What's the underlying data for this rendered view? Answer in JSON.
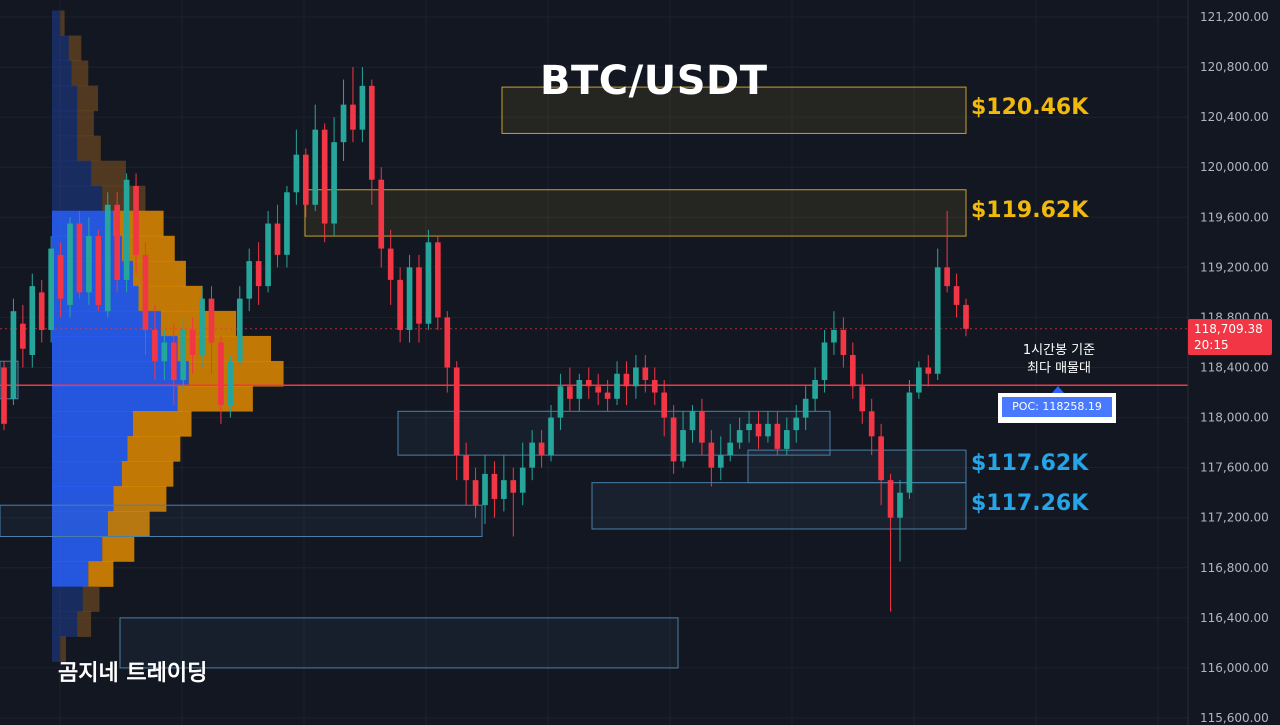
{
  "title": "BTC/USDT",
  "brand": "곰지네 트레이딩",
  "poc_note": {
    "line1": "1시간봉 기준",
    "line2": "최다 매물대"
  },
  "poc_label": "POC: 118258.19",
  "current_price": {
    "price": "118,709.38",
    "countdown": "20:15",
    "value": 118709.38
  },
  "colors": {
    "up": "#26a69a",
    "down": "#f23645",
    "gold": "#f0b90b",
    "cyan": "#26a4e8",
    "poc": "#f23645"
  },
  "zones": [
    {
      "label": "$120.46K",
      "color": "gold",
      "low": 120270,
      "high": 120640,
      "start": 502,
      "end": 966
    },
    {
      "label": "$119.62K",
      "color": "gold",
      "low": 119450,
      "high": 119820,
      "start": 305,
      "end": 966
    },
    {
      "label": "$117.62K",
      "color": "cyan",
      "low": 117480,
      "high": 117740,
      "start": 748,
      "end": 966
    },
    {
      "label": "$117.26K",
      "color": "cyan",
      "low": 117110,
      "high": 117480,
      "start": 592,
      "end": 966
    }
  ],
  "chart_data": {
    "type": "candlestick",
    "y_axis": {
      "min": 115600,
      "max": 121300,
      "ticks": [
        "121,200.00",
        "120,800.00",
        "120,400.00",
        "120,000.00",
        "119,600.00",
        "119,200.00",
        "118,800.00",
        "118,400.00",
        "118,000.00",
        "117,600.00",
        "117,200.00",
        "116,800.00",
        "116,400.00",
        "116,000.00",
        "115,600.00"
      ],
      "tick_values": [
        121200,
        120800,
        120400,
        120000,
        119600,
        119200,
        118800,
        118400,
        118000,
        117600,
        117200,
        116800,
        116400,
        116000,
        115600
      ]
    },
    "poc": 118258.19,
    "volume_profile": [
      {
        "price": 121150,
        "buy": 0.06,
        "sell": 0.03
      },
      {
        "price": 120950,
        "buy": 0.12,
        "sell": 0.09
      },
      {
        "price": 120750,
        "buy": 0.14,
        "sell": 0.12
      },
      {
        "price": 120550,
        "buy": 0.18,
        "sell": 0.15
      },
      {
        "price": 120350,
        "buy": 0.18,
        "sell": 0.12
      },
      {
        "price": 120150,
        "buy": 0.18,
        "sell": 0.17
      },
      {
        "price": 119950,
        "buy": 0.28,
        "sell": 0.25
      },
      {
        "price": 119750,
        "buy": 0.36,
        "sell": 0.31
      },
      {
        "price": 119550,
        "buy": 0.44,
        "sell": 0.36
      },
      {
        "price": 119350,
        "buy": 0.5,
        "sell": 0.38
      },
      {
        "price": 119150,
        "buy": 0.58,
        "sell": 0.38
      },
      {
        "price": 118950,
        "buy": 0.62,
        "sell": 0.46
      },
      {
        "price": 118750,
        "buy": 0.78,
        "sell": 0.54
      },
      {
        "price": 118550,
        "buy": 0.9,
        "sell": 0.67
      },
      {
        "price": 118350,
        "buy": 0.98,
        "sell": 0.68
      },
      {
        "price": 118150,
        "buy": 0.9,
        "sell": 0.54
      },
      {
        "price": 117950,
        "buy": 0.58,
        "sell": 0.42
      },
      {
        "price": 117750,
        "buy": 0.54,
        "sell": 0.38
      },
      {
        "price": 117550,
        "buy": 0.5,
        "sell": 0.37
      },
      {
        "price": 117350,
        "buy": 0.44,
        "sell": 0.38
      },
      {
        "price": 117150,
        "buy": 0.4,
        "sell": 0.3
      },
      {
        "price": 116950,
        "buy": 0.36,
        "sell": 0.23
      },
      {
        "price": 116750,
        "buy": 0.26,
        "sell": 0.18
      },
      {
        "price": 116550,
        "buy": 0.22,
        "sell": 0.12
      },
      {
        "price": 116350,
        "buy": 0.18,
        "sell": 0.1
      },
      {
        "price": 116150,
        "buy": 0.06,
        "sell": 0.04
      }
    ],
    "candles": [
      [
        118400,
        117950,
        118450,
        117900
      ],
      [
        118150,
        118850,
        118950,
        118100
      ],
      [
        118750,
        118550,
        118900,
        118400
      ],
      [
        118500,
        119050,
        119150,
        118400
      ],
      [
        119000,
        118700,
        119100,
        118600
      ],
      [
        118700,
        119350,
        119450,
        118600
      ],
      [
        119300,
        118950,
        119400,
        118800
      ],
      [
        118900,
        119550,
        119600,
        118800
      ],
      [
        119550,
        119000,
        119650,
        118950
      ],
      [
        119000,
        119450,
        119600,
        118900
      ],
      [
        119450,
        118900,
        119500,
        118850
      ],
      [
        118850,
        119700,
        119800,
        118800
      ],
      [
        119700,
        119100,
        119800,
        119000
      ],
      [
        119100,
        119900,
        119950,
        119000
      ],
      [
        119850,
        119300,
        119950,
        119150
      ],
      [
        119300,
        118700,
        119400,
        118500
      ],
      [
        118700,
        118450,
        118900,
        118300
      ],
      [
        118450,
        118600,
        118700,
        118300
      ],
      [
        118600,
        118300,
        118750,
        118100
      ],
      [
        118300,
        118700,
        118800,
        118200
      ],
      [
        118700,
        118500,
        118800,
        118350
      ],
      [
        118500,
        118950,
        119050,
        118400
      ],
      [
        118950,
        118600,
        119050,
        118350
      ],
      [
        118600,
        118100,
        118650,
        117950
      ],
      [
        118100,
        118450,
        118500,
        118000
      ],
      [
        118450,
        118950,
        119050,
        118400
      ],
      [
        118950,
        119250,
        119350,
        118850
      ],
      [
        119250,
        119050,
        119400,
        118900
      ],
      [
        119050,
        119550,
        119650,
        119000
      ],
      [
        119550,
        119300,
        119700,
        119200
      ],
      [
        119300,
        119800,
        119850,
        119200
      ],
      [
        119800,
        120100,
        120300,
        119700
      ],
      [
        120100,
        119700,
        120150,
        119600
      ],
      [
        119700,
        120300,
        120500,
        119650
      ],
      [
        120300,
        119550,
        120350,
        119400
      ],
      [
        119550,
        120200,
        120400,
        119450
      ],
      [
        120200,
        120500,
        120700,
        120050
      ],
      [
        120500,
        120300,
        120800,
        120200
      ],
      [
        120300,
        120650,
        120800,
        120200
      ],
      [
        120650,
        119900,
        120700,
        119700
      ],
      [
        119900,
        119350,
        120000,
        119200
      ],
      [
        119350,
        119100,
        119500,
        118900
      ],
      [
        119100,
        118700,
        119200,
        118600
      ],
      [
        118700,
        119200,
        119300,
        118600
      ],
      [
        119200,
        118750,
        119300,
        118600
      ],
      [
        118750,
        119400,
        119500,
        118700
      ],
      [
        119400,
        118800,
        119450,
        118700
      ],
      [
        118800,
        118400,
        118850,
        118200
      ],
      [
        118400,
        117700,
        118450,
        117500
      ],
      [
        117700,
        117500,
        117800,
        117300
      ],
      [
        117500,
        117300,
        117600,
        117200
      ],
      [
        117300,
        117550,
        117700,
        117150
      ],
      [
        117550,
        117350,
        117650,
        117200
      ],
      [
        117350,
        117500,
        117700,
        117250
      ],
      [
        117500,
        117400,
        117600,
        117050
      ],
      [
        117400,
        117600,
        117800,
        117300
      ],
      [
        117600,
        117800,
        117900,
        117500
      ],
      [
        117800,
        117700,
        117900,
        117600
      ],
      [
        117700,
        118000,
        118100,
        117650
      ],
      [
        118000,
        118250,
        118350,
        117900
      ],
      [
        118250,
        118150,
        118400,
        118050
      ],
      [
        118150,
        118300,
        118350,
        118050
      ],
      [
        118300,
        118250,
        118400,
        118150
      ],
      [
        118250,
        118200,
        118350,
        118100
      ],
      [
        118200,
        118150,
        118300,
        118050
      ],
      [
        118150,
        118350,
        118450,
        118100
      ],
      [
        118350,
        118250,
        118450,
        118100
      ],
      [
        118250,
        118400,
        118500,
        118150
      ],
      [
        118400,
        118300,
        118500,
        118200
      ],
      [
        118300,
        118200,
        118400,
        118100
      ],
      [
        118200,
        118000,
        118300,
        117850
      ],
      [
        118000,
        117650,
        118100,
        117550
      ],
      [
        117650,
        117900,
        118050,
        117600
      ],
      [
        117900,
        118050,
        118100,
        117800
      ],
      [
        118050,
        117800,
        118150,
        117700
      ],
      [
        117800,
        117600,
        117900,
        117450
      ],
      [
        117600,
        117700,
        117850,
        117500
      ],
      [
        117700,
        117800,
        117950,
        117650
      ],
      [
        117800,
        117900,
        118000,
        117750
      ],
      [
        117900,
        117950,
        118050,
        117800
      ],
      [
        117950,
        117850,
        118050,
        117750
      ],
      [
        117850,
        117950,
        118050,
        117800
      ],
      [
        117950,
        117750,
        118050,
        117700
      ],
      [
        117750,
        117900,
        118000,
        117700
      ],
      [
        117900,
        118000,
        118100,
        117800
      ],
      [
        118000,
        118150,
        118250,
        117900
      ],
      [
        118150,
        118300,
        118400,
        118050
      ],
      [
        118300,
        118600,
        118700,
        118200
      ],
      [
        118600,
        118700,
        118850,
        118500
      ],
      [
        118700,
        118500,
        118800,
        118400
      ],
      [
        118500,
        118250,
        118600,
        118150
      ],
      [
        118250,
        118050,
        118350,
        117950
      ],
      [
        118050,
        117850,
        118150,
        117700
      ],
      [
        117850,
        117500,
        117950,
        117300
      ],
      [
        117500,
        117200,
        117550,
        116450
      ],
      [
        117200,
        117400,
        117500,
        116850
      ],
      [
        117400,
        118200,
        118300,
        117350
      ],
      [
        118200,
        118400,
        118450,
        118150
      ],
      [
        118400,
        118350,
        118500,
        118250
      ],
      [
        118350,
        119200,
        119350,
        118300
      ],
      [
        119200,
        119050,
        119650,
        119000
      ],
      [
        119050,
        118900,
        119150,
        118800
      ],
      [
        118900,
        118709,
        118950,
        118650
      ]
    ]
  }
}
